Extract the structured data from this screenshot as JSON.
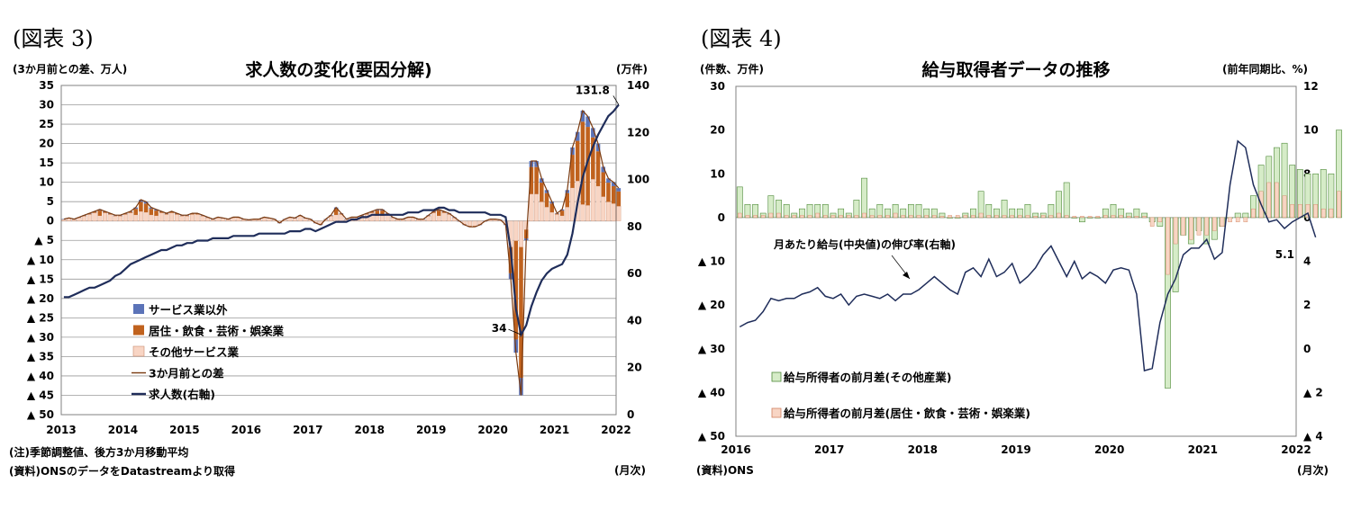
{
  "chart_data": [
    {
      "type": "bar",
      "figure_label": "(図表 3)",
      "title": "求人数の変化(要因分解)",
      "ylabel_left": "(3か月前との差、万人)",
      "ylabel_right": "(万件)",
      "xlabel": "(月次)",
      "notes": [
        "(注)季節調整値、後方3か月移動平均",
        "(資料)ONSのデータをDatastreamより取得"
      ],
      "left_axis": {
        "ylim": [
          -50,
          35
        ],
        "ticks": [
          {
            "v": 35,
            "label": "35"
          },
          {
            "v": 30,
            "label": "30"
          },
          {
            "v": 25,
            "label": "25"
          },
          {
            "v": 20,
            "label": "20"
          },
          {
            "v": 15,
            "label": "15"
          },
          {
            "v": 10,
            "label": "10"
          },
          {
            "v": 5,
            "label": "5"
          },
          {
            "v": 0,
            "label": "0"
          },
          {
            "v": -5,
            "label": "▲ 5"
          },
          {
            "v": -10,
            "label": "▲ 10"
          },
          {
            "v": -15,
            "label": "▲ 15"
          },
          {
            "v": -20,
            "label": "▲ 20"
          },
          {
            "v": -25,
            "label": "▲ 25"
          },
          {
            "v": -30,
            "label": "▲ 30"
          },
          {
            "v": -35,
            "label": "▲ 35"
          },
          {
            "v": -40,
            "label": "▲ 40"
          },
          {
            "v": -45,
            "label": "▲ 45"
          },
          {
            "v": -50,
            "label": "▲ 50"
          }
        ]
      },
      "right_axis": {
        "ylim": [
          0,
          140
        ],
        "ticks": [
          {
            "v": 140,
            "label": "140"
          },
          {
            "v": 120,
            "label": "120"
          },
          {
            "v": 100,
            "label": "100"
          },
          {
            "v": 80,
            "label": "80"
          },
          {
            "v": 60,
            "label": "60"
          },
          {
            "v": 40,
            "label": "40"
          },
          {
            "v": 20,
            "label": "20"
          },
          {
            "v": 0,
            "label": "0"
          }
        ]
      },
      "x_ticks": [
        "2013",
        "2014",
        "2015",
        "2016",
        "2017",
        "2018",
        "2019",
        "2020",
        "2021",
        "2022"
      ],
      "series": [
        {
          "name": "サービス業以外",
          "color": "#5b73b8"
        },
        {
          "name": "居住・飲食・芸術・娯楽業",
          "color": "#c0621e"
        },
        {
          "name": "その他サービス業",
          "color": "#f8d5c4"
        },
        {
          "name": "3か月前との差",
          "color": "#7a3a10"
        },
        {
          "name": "求人数(右軸)",
          "color": "#1f2d5a"
        }
      ],
      "monthly_change": {
        "2013": [
          0.5,
          0.8,
          0.5,
          1.0,
          1.5,
          2.0,
          2.5,
          3.0,
          2.5,
          2.0,
          1.5,
          1.5
        ],
        "2014": [
          2.0,
          2.5,
          3.5,
          5.5,
          5.0,
          3.5,
          3.0,
          2.5,
          2.0,
          2.5,
          2.0,
          1.5
        ],
        "2015": [
          1.5,
          2.0,
          2.0,
          1.5,
          1.0,
          0.5,
          1.0,
          0.8,
          0.5,
          1.0,
          1.0,
          0.5
        ],
        "2016": [
          0.3,
          0.5,
          0.5,
          1.0,
          0.8,
          0.5,
          -0.5,
          0.5,
          1.0,
          0.8,
          1.5,
          0.8
        ],
        "2017": [
          0.5,
          -0.5,
          -1.0,
          0.5,
          1.5,
          3.5,
          2.0,
          0.5,
          1.0,
          1.0,
          1.5,
          2.0
        ],
        "2018": [
          2.5,
          3.0,
          3.0,
          2.0,
          1.0,
          0.5,
          0.5,
          1.0,
          1.0,
          0.5,
          0.5,
          1.5
        ],
        "2019": [
          2.5,
          3.0,
          2.5,
          2.0,
          1.0,
          0.0,
          -1.0,
          -1.5,
          -1.5,
          -1.0,
          0.0,
          0.5
        ],
        "2020": [
          0.5,
          0.3,
          -1.0,
          -15,
          -34,
          -45,
          -5,
          15.5,
          15.5,
          11,
          8,
          5
        ],
        "2021": [
          2,
          3,
          8,
          19,
          23,
          28.5,
          27,
          24,
          20,
          14,
          11,
          10
        ],
        "2022": [
          8.5
        ]
      },
      "stock_level": {
        "2013": [
          50,
          50,
          51,
          52,
          53,
          54,
          54,
          55,
          56,
          57,
          59,
          60
        ],
        "2014": [
          62,
          64,
          65,
          66,
          67,
          68,
          69,
          70,
          70,
          71,
          72,
          72
        ],
        "2015": [
          73,
          73,
          74,
          74,
          74,
          75,
          75,
          75,
          75,
          76,
          76,
          76
        ],
        "2016": [
          76,
          76,
          77,
          77,
          77,
          77,
          77,
          77,
          78,
          78,
          78,
          79
        ],
        "2017": [
          79,
          78,
          79,
          80,
          81,
          82,
          82,
          82,
          83,
          83,
          84,
          84
        ],
        "2018": [
          85,
          85,
          85,
          85,
          85,
          85,
          85,
          86,
          86,
          86,
          87,
          87
        ],
        "2019": [
          87,
          88,
          88,
          87,
          87,
          86,
          86,
          86,
          86,
          86,
          86,
          85
        ],
        "2020": [
          85,
          85,
          84,
          70,
          45,
          34,
          38,
          46,
          52,
          57,
          60,
          62
        ],
        "2021": [
          63,
          64,
          68,
          77,
          90,
          101,
          108,
          114,
          119,
          123,
          127,
          129
        ],
        "2022": [
          131.8
        ]
      },
      "annotations": [
        {
          "text": "131.8",
          "at": "2022-01",
          "axis": "right",
          "value": 131.8
        },
        {
          "text": "34",
          "at": "2020-06",
          "axis": "right",
          "value": 34
        }
      ]
    },
    {
      "type": "bar",
      "figure_label": "(図表 4)",
      "title": "給与取得者データの推移",
      "ylabel_left": "(件数、万件)",
      "ylabel_right": "(前年同期比、%)",
      "xlabel": "(月次)",
      "notes": [
        "(資料)ONS"
      ],
      "left_axis": {
        "ylim": [
          -50,
          30
        ],
        "ticks": [
          {
            "v": 30,
            "label": "30"
          },
          {
            "v": 20,
            "label": "20"
          },
          {
            "v": 10,
            "label": "10"
          },
          {
            "v": 0,
            "label": "0"
          },
          {
            "v": -10,
            "label": "▲ 10"
          },
          {
            "v": -20,
            "label": "▲ 20"
          },
          {
            "v": -30,
            "label": "▲ 30"
          },
          {
            "v": -40,
            "label": "▲ 40"
          },
          {
            "v": -50,
            "label": "▲ 50"
          }
        ]
      },
      "right_axis": {
        "ylim": [
          -4,
          12
        ],
        "ticks": [
          {
            "v": 12,
            "label": "12"
          },
          {
            "v": 10,
            "label": "10"
          },
          {
            "v": 8,
            "label": "8"
          },
          {
            "v": 6,
            "label": "6"
          },
          {
            "v": 4,
            "label": "4"
          },
          {
            "v": 2,
            "label": "2"
          },
          {
            "v": 0,
            "label": "0"
          },
          {
            "v": -2,
            "label": "▲ 2"
          },
          {
            "v": -4,
            "label": "▲ 4"
          }
        ]
      },
      "x_ticks": [
        "2016",
        "2017",
        "2018",
        "2019",
        "2020",
        "2021",
        "2022"
      ],
      "series": [
        {
          "name": "給与所得者の前月差(その他産業)",
          "color": "#d6ecc8"
        },
        {
          "name": "給与所得者の前月差(居住・飲食・芸術・娯楽業)",
          "color": "#f8d5c4"
        },
        {
          "name": "月あたり給与(中央値)の伸び率(右軸)",
          "color": "#1f2d5a"
        }
      ],
      "bars_other": {
        "2016": [
          7,
          3,
          3,
          1,
          5,
          4,
          3,
          1,
          2,
          3,
          3,
          3
        ],
        "2017": [
          1,
          2,
          1,
          4,
          9,
          2,
          3,
          2,
          3,
          2,
          3,
          3
        ],
        "2018": [
          2,
          2,
          1,
          0,
          0,
          1,
          2,
          6,
          3,
          2,
          4,
          2
        ],
        "2019": [
          2,
          3,
          1,
          1,
          3,
          6,
          8,
          0,
          -1,
          0,
          0,
          2
        ],
        "2020": [
          3,
          2,
          1,
          2,
          1,
          -1,
          -2,
          -39,
          -17,
          -4,
          -6,
          -3
        ],
        "2021": [
          -6,
          -5,
          -2,
          0,
          1,
          1,
          5,
          12,
          14,
          16,
          17,
          12
        ],
        "2022": [
          11,
          10,
          10,
          11,
          10,
          20
        ]
      },
      "bars_hospitality": {
        "2016": [
          1,
          0.5,
          0.5,
          0.5,
          1,
          1,
          0.5,
          0.5,
          0.5,
          0.5,
          1,
          0.5
        ],
        "2017": [
          0.5,
          0.5,
          0.5,
          0.5,
          1,
          0.5,
          0.5,
          0.5,
          1,
          0.5,
          0.5,
          0.5
        ],
        "2018": [
          0.5,
          0.5,
          0.3,
          0.5,
          0.5,
          0.5,
          0.5,
          1,
          0.5,
          0.5,
          0.5,
          0.5
        ],
        "2019": [
          0.5,
          0.5,
          0.3,
          0.5,
          0.5,
          1,
          0.5,
          0.3,
          0.3,
          0.3,
          0.3,
          0.5
        ],
        "2020": [
          0.5,
          0.5,
          0.3,
          0.3,
          0.3,
          -2,
          -1,
          -13,
          -6,
          -4,
          -5,
          -4
        ],
        "2021": [
          -4,
          -3,
          -2,
          -1,
          -1,
          -1,
          2,
          6,
          8,
          8,
          5,
          3
        ],
        "2022": [
          3,
          3,
          3,
          2,
          2,
          6
        ]
      },
      "wage_growth": {
        "2016": [
          1.0,
          1.2,
          1.3,
          1.7,
          2.3,
          2.2,
          2.3,
          2.3,
          2.5,
          2.6,
          2.8,
          2.4
        ],
        "2017": [
          2.3,
          2.5,
          2.0,
          2.4,
          2.5,
          2.4,
          2.3,
          2.5,
          2.2,
          2.5,
          2.5,
          2.7
        ],
        "2018": [
          3.0,
          3.3,
          3.0,
          2.7,
          2.5,
          3.5,
          3.7,
          3.3,
          4.1,
          3.3,
          3.5,
          3.9
        ],
        "2019": [
          3.0,
          3.3,
          3.7,
          4.3,
          4.7,
          4.0,
          3.3,
          4.0,
          3.2,
          3.5,
          3.3,
          3.0
        ],
        "2020": [
          3.6,
          3.7,
          3.6,
          2.5,
          -1.0,
          -0.9,
          1.2,
          2.5,
          3.2,
          4.3,
          4.6,
          4.6
        ],
        "2021": [
          5.0,
          4.1,
          4.4,
          7.5,
          9.5,
          9.2,
          7.5,
          6.6,
          5.8,
          5.9,
          5.5,
          5.8
        ],
        "2022": [
          6.0,
          6.2,
          5.1
        ]
      },
      "annotations": [
        {
          "text": "月あたり給与(中央値)の伸び率(右軸)"
        },
        {
          "text": "5.1",
          "at": "2022-03",
          "axis": "right",
          "value": 5.1
        }
      ]
    }
  ]
}
